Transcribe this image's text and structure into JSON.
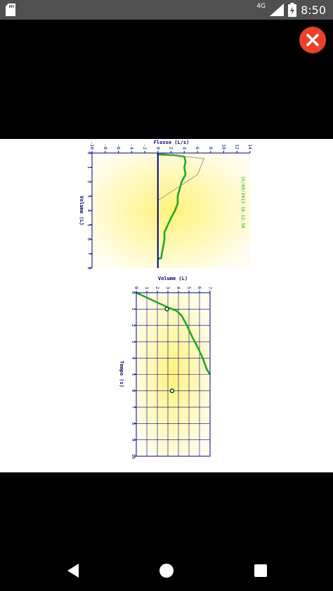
{
  "status_bar": {
    "network": "4G",
    "time": "8:50",
    "icons": [
      "sd-card-icon",
      "signal-icon",
      "battery-charging-icon"
    ]
  },
  "close_button": {
    "icon": "close-icon",
    "color": "#e8412c"
  },
  "viewer": {
    "charts": [
      {
        "id": "flow-volume",
        "type": "line",
        "title": "Flusso (L/s)",
        "ylabel": "Volume (L)",
        "timestamp": "15/09/2013 18.12.58",
        "x_ticks": [
          "-10",
          "-8",
          "-6",
          "-4",
          "-2",
          "0",
          "2",
          "4",
          "6",
          "8",
          "10",
          "12",
          "14"
        ],
        "y_ticks": [
          "0",
          "1",
          "2",
          "3",
          "4",
          "5",
          "6",
          "7",
          "8"
        ],
        "xlim": [
          -10,
          14
        ],
        "ylim": [
          0,
          8
        ],
        "series": [
          {
            "color": "#22a822",
            "x": [
              0.0,
              2.5,
              4.0,
              4.2,
              4.0,
              4.2,
              3.6,
              3.3,
              3.0,
              3.0,
              2.6,
              2.0,
              1.5,
              1.0,
              1.0,
              0.8,
              0.6,
              0.5,
              0.0
            ],
            "y": [
              0.1,
              0.15,
              0.25,
              0.6,
              1.0,
              1.5,
              2.0,
              2.5,
              3.0,
              3.5,
              4.0,
              4.5,
              5.0,
              5.5,
              6.0,
              6.5,
              7.0,
              7.3,
              7.35
            ]
          },
          {
            "color": "#888888",
            "x": [
              0.0,
              7.0,
              6.0,
              0.0
            ],
            "y": [
              0.0,
              0.4,
              1.5,
              3.3
            ]
          }
        ],
        "colors": {
          "axis": "#000080",
          "text": "#000066",
          "timestamp": "#22a822",
          "background": "#fffdd0",
          "glow": "#fff27a"
        }
      },
      {
        "id": "volume-time",
        "type": "line",
        "title": "Volume (L)",
        "ylabel": "Tempo (s)",
        "x_ticks": [
          "0",
          "1",
          "2",
          "3",
          "4",
          "5",
          "6",
          "7"
        ],
        "y_ticks": [
          "0",
          "1",
          "2",
          "3",
          "4",
          "5",
          "6",
          "7",
          "8",
          "9",
          "10"
        ],
        "xlim": [
          0,
          7
        ],
        "ylim": [
          0,
          10
        ],
        "series": [
          {
            "color": "#22a822",
            "x": [
              0.0,
              1.0,
              2.0,
              3.0,
              3.8,
              4.3,
              4.8,
              5.3,
              5.8,
              6.3,
              6.7,
              7.0
            ],
            "y": [
              0.0,
              0.3,
              0.6,
              0.9,
              1.1,
              1.4,
              2.0,
              2.7,
              3.3,
              4.0,
              4.7,
              5.0
            ]
          }
        ],
        "markers": [
          {
            "x": 2.9,
            "y": 1.0
          },
          {
            "x": 3.4,
            "y": 6.0
          }
        ],
        "colors": {
          "axis": "#000080",
          "grid": "#000080",
          "text": "#000066",
          "background": "#fffdd0",
          "glow": "#fff27a"
        }
      }
    ]
  },
  "nav_bar": {
    "buttons": [
      "back-icon",
      "home-icon",
      "recents-icon"
    ]
  }
}
